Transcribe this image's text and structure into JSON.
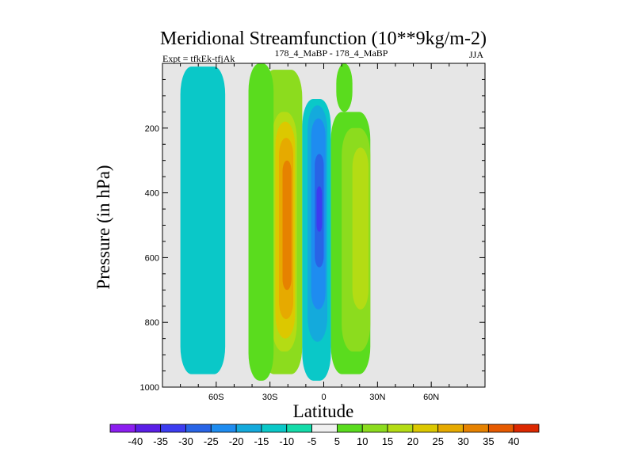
{
  "chart_data": {
    "type": "contour",
    "title": "Meridional Streamfunction (10**9kg/m-2)",
    "subtitle_left": "Expt = tfkEk-tfjAk",
    "subtitle_center": "178_4_MaBP - 178_4_MaBP",
    "subtitle_right": "JJA",
    "xlabel": "Latitude",
    "ylabel": "Pressure (in hPa)",
    "xlim": [
      -90,
      90
    ],
    "ylim": [
      1000,
      0
    ],
    "xticks": [
      {
        "value": -60,
        "label": "60S"
      },
      {
        "value": -30,
        "label": "30S"
      },
      {
        "value": 0,
        "label": "0"
      },
      {
        "value": 30,
        "label": "30N"
      },
      {
        "value": 60,
        "label": "60N"
      }
    ],
    "yticks": [
      {
        "value": 200,
        "label": "200"
      },
      {
        "value": 400,
        "label": "400"
      },
      {
        "value": 600,
        "label": "600"
      },
      {
        "value": 800,
        "label": "800"
      },
      {
        "value": 1000,
        "label": "1000"
      }
    ],
    "missing_color": "#e6e6e6",
    "colorbar": {
      "labels": [
        "-40",
        "-35",
        "-30",
        "-25",
        "-20",
        "-15",
        "-10",
        "-5",
        "5",
        "10",
        "15",
        "20",
        "25",
        "30",
        "35",
        "40"
      ],
      "colors": [
        "#8c1ef0",
        "#5a1ee6",
        "#3c3cf0",
        "#2864e6",
        "#1e8cf0",
        "#14aadc",
        "#0ac8c8",
        "#14dcaa",
        "#f0f0f0",
        "#5adc1e",
        "#8cdc1e",
        "#b4dc14",
        "#dcc800",
        "#e6aa00",
        "#e68200",
        "#e65a00",
        "#dc2800"
      ]
    },
    "fields": [
      {
        "level": "10",
        "sign": "positive",
        "color": "#8cdc1e",
        "lat": [
          -34,
          -12
        ],
        "pressure": [
          20,
          960
        ]
      },
      {
        "level": "15",
        "sign": "positive",
        "color": "#b4dc14",
        "lat": [
          -29,
          -15
        ],
        "pressure": [
          150,
          890
        ]
      },
      {
        "level": "20",
        "sign": "positive",
        "color": "#dcc800",
        "lat": [
          -27,
          -16
        ],
        "pressure": [
          180,
          850
        ]
      },
      {
        "level": "25",
        "sign": "positive",
        "color": "#e6aa00",
        "lat": [
          -25,
          -17
        ],
        "pressure": [
          230,
          790
        ]
      },
      {
        "level": "30",
        "sign": "positive",
        "color": "#e68200",
        "lat": [
          -23,
          -18
        ],
        "pressure": [
          300,
          700
        ]
      },
      {
        "level": "-10",
        "sign": "negative",
        "color": "#0ac8c8",
        "lat": [
          -80,
          -55
        ],
        "pressure": [
          10,
          960
        ]
      },
      {
        "level": "-10",
        "sign": "negative",
        "color": "#0ac8c8",
        "lat": [
          -12,
          4
        ],
        "pressure": [
          110,
          980
        ]
      },
      {
        "level": "-15",
        "sign": "negative",
        "color": "#14aadc",
        "lat": [
          -9,
          2
        ],
        "pressure": [
          130,
          860
        ]
      },
      {
        "level": "-20",
        "sign": "negative",
        "color": "#1e8cf0",
        "lat": [
          -7,
          1
        ],
        "pressure": [
          170,
          760
        ]
      },
      {
        "level": "-25",
        "sign": "negative",
        "color": "#2864e6",
        "lat": [
          -5,
          0
        ],
        "pressure": [
          280,
          630
        ]
      },
      {
        "level": "-30",
        "sign": "negative",
        "color": "#3c3cf0",
        "lat": [
          -4,
          -1
        ],
        "pressure": [
          380,
          520
        ]
      },
      {
        "level": "5",
        "sign": "positive",
        "color": "#5adc1e",
        "lat": [
          -42,
          -28
        ],
        "pressure": [
          0,
          980
        ]
      },
      {
        "level": "5",
        "sign": "positive",
        "color": "#5adc1e",
        "lat": [
          4,
          26
        ],
        "pressure": [
          150,
          960
        ]
      },
      {
        "level": "10",
        "sign": "positive",
        "color": "#8cdc1e",
        "lat": [
          10,
          26
        ],
        "pressure": [
          200,
          890
        ]
      },
      {
        "level": "15",
        "sign": "positive",
        "color": "#b4dc14",
        "lat": [
          16,
          25
        ],
        "pressure": [
          260,
          760
        ]
      },
      {
        "level": "5",
        "sign": "positive",
        "color": "#5adc1e",
        "lat": [
          7,
          16
        ],
        "pressure": [
          0,
          150
        ]
      }
    ]
  }
}
